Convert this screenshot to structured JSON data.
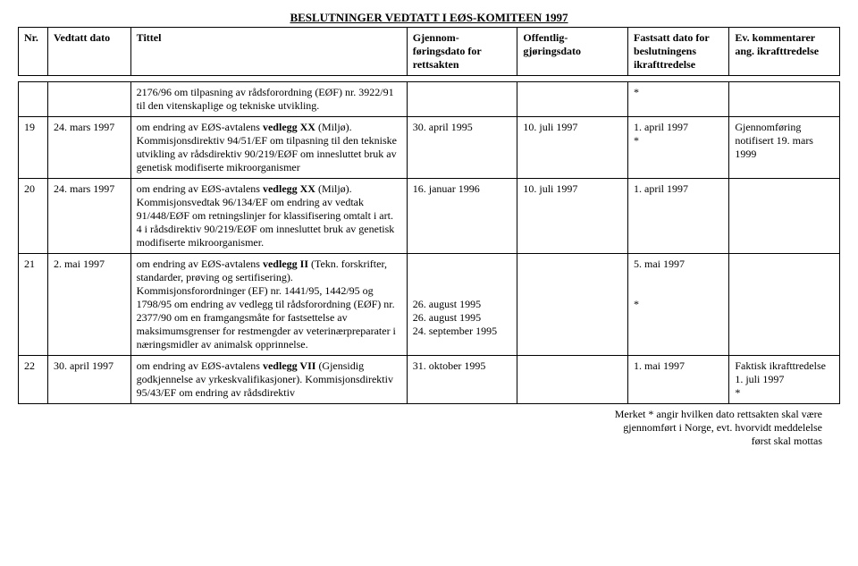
{
  "title": "BESLUTNINGER VEDTATT I EØS-KOMITEEN 1997",
  "columns": {
    "nr": "Nr.",
    "vedtatt": "Vedtatt dato",
    "tittel": "Tittel",
    "gjennom": "Gjennom-føringsdato for rettsakten",
    "offentlig": "Offentlig-gjøringsdato",
    "fastsatt": "Fastsatt dato for beslutningens ikrafttredelse",
    "kommentar": "Ev. kommentarer ang. ikrafttredelse"
  },
  "rows": [
    {
      "nr": "",
      "vedtatt": "",
      "tittel_pre": "2176/96 om tilpasning av rådsforordning (EØF) nr. 3922/91 til den vitenskaplige og tekniske utvikling.",
      "tittel_bold": "",
      "tittel_post": "",
      "gjennom": "",
      "offentlig": "",
      "fastsatt": "*",
      "kommentar": ""
    },
    {
      "nr": "19",
      "vedtatt": "24. mars 1997",
      "tittel_pre": "om endring av EØS-avtalens ",
      "tittel_bold": "vedlegg XX",
      "tittel_post": " (Miljø). Kommisjonsdirektiv 94/51/EF om tilpasning til den tekniske utvikling av rådsdirektiv 90/219/EØF om innesluttet bruk av genetisk modifiserte mikroorganismer",
      "gjennom": "30. april 1995",
      "offentlig": "10. juli 1997",
      "fastsatt": "1. april 1997\n*",
      "kommentar": "Gjennomføring notifisert 19. mars 1999"
    },
    {
      "nr": "20",
      "vedtatt": "24. mars 1997",
      "tittel_pre": "om endring av EØS-avtalens ",
      "tittel_bold": "vedlegg XX",
      "tittel_post": " (Miljø). Kommisjonsvedtak 96/134/EF om endring av vedtak 91/448/EØF om retningslinjer for klassifisering omtalt i art. 4 i rådsdirektiv 90/219/EØF om innesluttet bruk av genetisk modifiserte mikroorganismer.",
      "gjennom": "16. januar 1996",
      "offentlig": "10. juli 1997",
      "fastsatt": "1. april 1997",
      "kommentar": ""
    },
    {
      "nr": "21",
      "vedtatt": "2. mai 1997",
      "tittel_pre": "om endring av EØS-avtalens ",
      "tittel_bold": "vedlegg II",
      "tittel_post": " (Tekn. forskrifter, standarder, prøving og sertifisering).\nKommisjonsforordninger (EF) nr. 1441/95, 1442/95 og 1798/95 om endring av vedlegg til rådsforordning (EØF) nr. 2377/90 om en framgangsmåte for fastsettelse av maksimumsgrenser for restmengder av veterinærpreparater i næringsmidler av animalsk opprinnelse.",
      "gjennom": "\n\n\n26. august 1995\n26. august 1995\n24. september 1995",
      "offentlig": "",
      "fastsatt": "5. mai 1997\n\n\n*",
      "kommentar": ""
    },
    {
      "nr": "22",
      "vedtatt": "30. april 1997",
      "tittel_pre": "om endring av EØS-avtalens ",
      "tittel_bold": "vedlegg VII",
      "tittel_post": " (Gjensidig godkjennelse av yrkeskvalifikasjoner). Kommisjonsdirektiv 95/43/EF om endring av rådsdirektiv",
      "gjennom": "31. oktober 1995",
      "offentlig": "",
      "fastsatt": "1. mai 1997",
      "kommentar": "Faktisk ikrafttredelse 1. juli 1997\n*"
    }
  ],
  "footer": "Merket * angir hvilken dato rettsakten skal være\ngjennomført i Norge, evt. hvorvidt meddelelse\nførst skal mottas"
}
